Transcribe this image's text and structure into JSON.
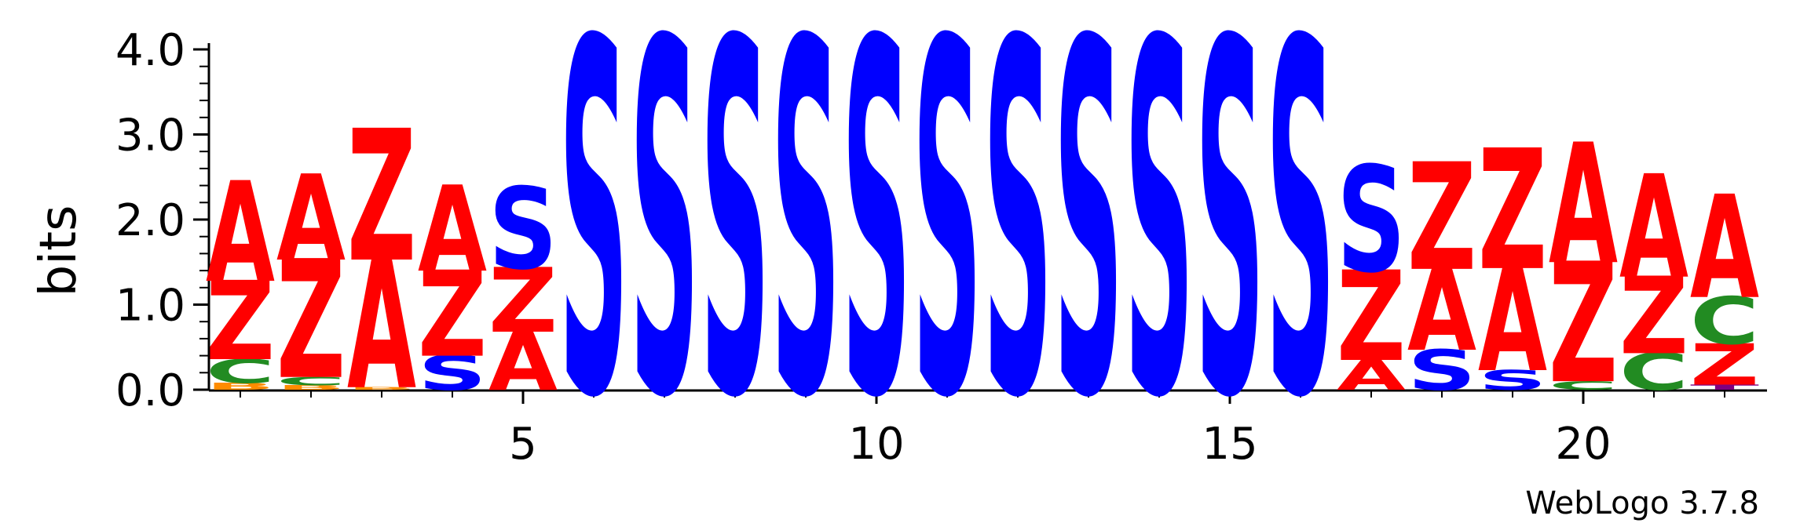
{
  "credit": "WebLogo 3.7.8",
  "colors": {
    "A": "#ff0000",
    "Z": "#ff0000",
    "S": "#0000ff",
    "C": "#228b22",
    "B": "#ff8c00",
    "T": "#800080"
  },
  "chart_data": {
    "type": "sequence-logo",
    "ylabel": "bits",
    "ylim": [
      0,
      4.0
    ],
    "yticks": [
      "0.0",
      "1.0",
      "2.0",
      "3.0",
      "4.0"
    ],
    "xlim": [
      0.5,
      22.5
    ],
    "xticks": [
      "5",
      "10",
      "15",
      "20"
    ],
    "positions": [
      {
        "pos": 1,
        "stack": [
          {
            "l": "B",
            "h": 0.08
          },
          {
            "l": "C",
            "h": 0.28
          },
          {
            "l": "Z",
            "h": 0.92
          },
          {
            "l": "A",
            "h": 1.17
          }
        ]
      },
      {
        "pos": 2,
        "stack": [
          {
            "l": "B",
            "h": 0.05
          },
          {
            "l": "C",
            "h": 0.1
          },
          {
            "l": "Z",
            "h": 1.38
          },
          {
            "l": "A",
            "h": 1.0
          }
        ]
      },
      {
        "pos": 3,
        "stack": [
          {
            "l": "B",
            "h": 0.03
          },
          {
            "l": "A",
            "h": 1.5
          },
          {
            "l": "Z",
            "h": 1.53
          }
        ]
      },
      {
        "pos": 4,
        "stack": [
          {
            "l": "S",
            "h": 0.4
          },
          {
            "l": "Z",
            "h": 1.0
          },
          {
            "l": "A",
            "h": 1.0
          }
        ]
      },
      {
        "pos": 5,
        "stack": [
          {
            "l": "A",
            "h": 0.68
          },
          {
            "l": "Z",
            "h": 0.75
          },
          {
            "l": "S",
            "h": 0.95
          }
        ]
      },
      {
        "pos": 6,
        "stack": [
          {
            "l": "S",
            "h": 4.1
          }
        ]
      },
      {
        "pos": 7,
        "stack": [
          {
            "l": "S",
            "h": 4.1
          }
        ]
      },
      {
        "pos": 8,
        "stack": [
          {
            "l": "S",
            "h": 4.1
          }
        ]
      },
      {
        "pos": 9,
        "stack": [
          {
            "l": "S",
            "h": 4.1
          }
        ]
      },
      {
        "pos": 10,
        "stack": [
          {
            "l": "S",
            "h": 4.1
          }
        ]
      },
      {
        "pos": 11,
        "stack": [
          {
            "l": "S",
            "h": 4.1
          }
        ]
      },
      {
        "pos": 12,
        "stack": [
          {
            "l": "S",
            "h": 4.1
          }
        ]
      },
      {
        "pos": 13,
        "stack": [
          {
            "l": "S",
            "h": 4.1
          }
        ]
      },
      {
        "pos": 14,
        "stack": [
          {
            "l": "S",
            "h": 4.1
          }
        ]
      },
      {
        "pos": 15,
        "stack": [
          {
            "l": "S",
            "h": 4.1
          }
        ]
      },
      {
        "pos": 16,
        "stack": [
          {
            "l": "S",
            "h": 4.1
          }
        ]
      },
      {
        "pos": 17,
        "stack": [
          {
            "l": "A",
            "h": 0.35
          },
          {
            "l": "Z",
            "h": 1.05
          },
          {
            "l": "S",
            "h": 1.23
          }
        ]
      },
      {
        "pos": 18,
        "stack": [
          {
            "l": "S",
            "h": 0.47
          },
          {
            "l": "A",
            "h": 0.95
          },
          {
            "l": "Z",
            "h": 1.25
          }
        ]
      },
      {
        "pos": 19,
        "stack": [
          {
            "l": "S",
            "h": 0.23
          },
          {
            "l": "A",
            "h": 1.2
          },
          {
            "l": "Z",
            "h": 1.4
          }
        ]
      },
      {
        "pos": 20,
        "stack": [
          {
            "l": "C",
            "h": 0.1
          },
          {
            "l": "Z",
            "h": 1.4
          },
          {
            "l": "A",
            "h": 1.4
          }
        ]
      },
      {
        "pos": 21,
        "stack": [
          {
            "l": "C",
            "h": 0.43
          },
          {
            "l": "Z",
            "h": 0.9
          },
          {
            "l": "A",
            "h": 1.2
          }
        ]
      },
      {
        "pos": 22,
        "stack": [
          {
            "l": "T",
            "h": 0.06
          },
          {
            "l": "Z",
            "h": 0.48
          },
          {
            "l": "C",
            "h": 0.55
          },
          {
            "l": "A",
            "h": 1.2
          }
        ]
      }
    ]
  }
}
